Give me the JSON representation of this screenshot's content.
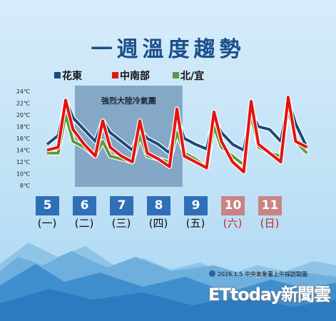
{
  "title": "一週溫度趨勢",
  "legend": [
    {
      "label": "花東",
      "color": "#1d4a7a"
    },
    {
      "label": "中南部",
      "color": "#e3140f"
    },
    {
      "label": "北/宜",
      "color": "#5e9a3c"
    }
  ],
  "annotation": "強烈大陸冷氣團",
  "days": [
    {
      "num": "5",
      "weekday": "(一)",
      "style": "normal"
    },
    {
      "num": "6",
      "weekday": "(二)",
      "style": "normal"
    },
    {
      "num": "7",
      "weekday": "(三)",
      "style": "normal"
    },
    {
      "num": "8",
      "weekday": "(四)",
      "style": "normal"
    },
    {
      "num": "9",
      "weekday": "(五)",
      "style": "normal"
    },
    {
      "num": "10",
      "weekday": "(六)",
      "style": "weekend"
    },
    {
      "num": "11",
      "weekday": "(日)",
      "style": "weekend"
    }
  ],
  "colors": {
    "day_normal": "#2f6fb7",
    "day_weekend": "#c98384",
    "weekend_text": "#cc2222",
    "band": "#6f93b7"
  },
  "credit": "2026.1.5 中央氣象署上午採訪製圖",
  "watermark": "ETtoday新聞雲",
  "chart_data": {
    "type": "line",
    "ylim": [
      8,
      24
    ],
    "yticks": [
      "24℃",
      "22℃",
      "20℃",
      "18℃",
      "16℃",
      "14℃",
      "12℃",
      "10℃",
      "8℃"
    ],
    "ytick_values": [
      24,
      22,
      20,
      18,
      16,
      14,
      12,
      10,
      8
    ],
    "x": [
      0,
      0.3,
      0.5,
      0.7,
      1.0,
      1.3,
      1.5,
      1.7,
      2.0,
      2.3,
      2.5,
      2.7,
      3.0,
      3.3,
      3.5,
      3.7,
      4.0,
      4.3,
      4.5,
      4.7,
      5.0,
      5.3,
      5.5,
      5.7,
      6.0,
      6.3,
      6.5,
      6.7,
      7.0
    ],
    "highlight_range": [
      0.75,
      3.65
    ],
    "series": [
      {
        "name": "花東",
        "values": [
          15.0,
          16.5,
          22.5,
          19.5,
          17.5,
          15.5,
          19.0,
          17.0,
          15.5,
          14.0,
          17.5,
          16.0,
          15.0,
          13.5,
          19.5,
          16.0,
          15.0,
          14.2,
          19.5,
          17.0,
          15.0,
          14.0,
          20.5,
          18.0,
          17.5,
          15.5,
          22.5,
          18.5,
          14.5
        ]
      },
      {
        "name": "中南部",
        "values": [
          14.0,
          14.5,
          22.5,
          17.5,
          15.0,
          13.0,
          19.0,
          14.5,
          13.0,
          12.0,
          19.0,
          13.5,
          12.5,
          11.2,
          21.0,
          13.0,
          12.0,
          11.0,
          20.5,
          15.5,
          12.0,
          10.3,
          22.3,
          15.0,
          13.5,
          12.0,
          23.0,
          15.5,
          14.5
        ]
      },
      {
        "name": "北/宜",
        "values": [
          13.5,
          13.5,
          20.0,
          15.5,
          14.5,
          13.0,
          15.5,
          13.0,
          12.5,
          12.0,
          16.5,
          13.0,
          12.5,
          12.0,
          17.0,
          13.5,
          12.5,
          11.0,
          18.0,
          14.5,
          13.0,
          11.5,
          20.0,
          14.5,
          13.5,
          13.0,
          21.0,
          15.5,
          13.5
        ]
      }
    ]
  }
}
